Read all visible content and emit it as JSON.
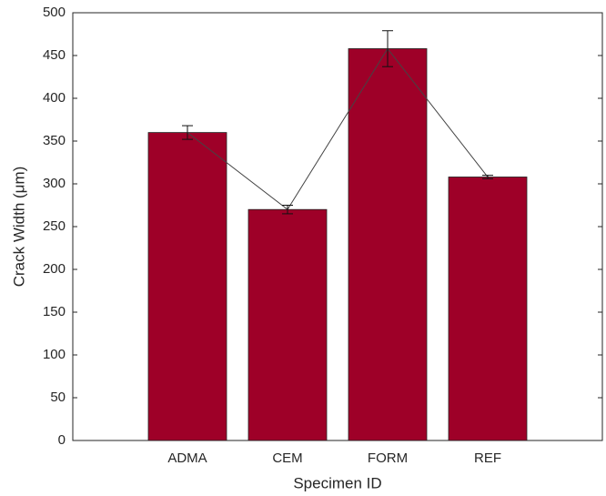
{
  "chart_data": {
    "type": "bar",
    "x_label": "Specimen ID",
    "y_label": "Crack Width (μm)",
    "categories": [
      "ADMA",
      "CEM",
      "FORM",
      "REF"
    ],
    "values": [
      360,
      270,
      458,
      308
    ],
    "errors": [
      8,
      5,
      21,
      2
    ],
    "color": "#9e0028",
    "line_color": "#444444",
    "ylim": [
      0,
      500
    ],
    "yticks": [
      0,
      50,
      100,
      150,
      200,
      250,
      300,
      350,
      400,
      450,
      500
    ]
  }
}
